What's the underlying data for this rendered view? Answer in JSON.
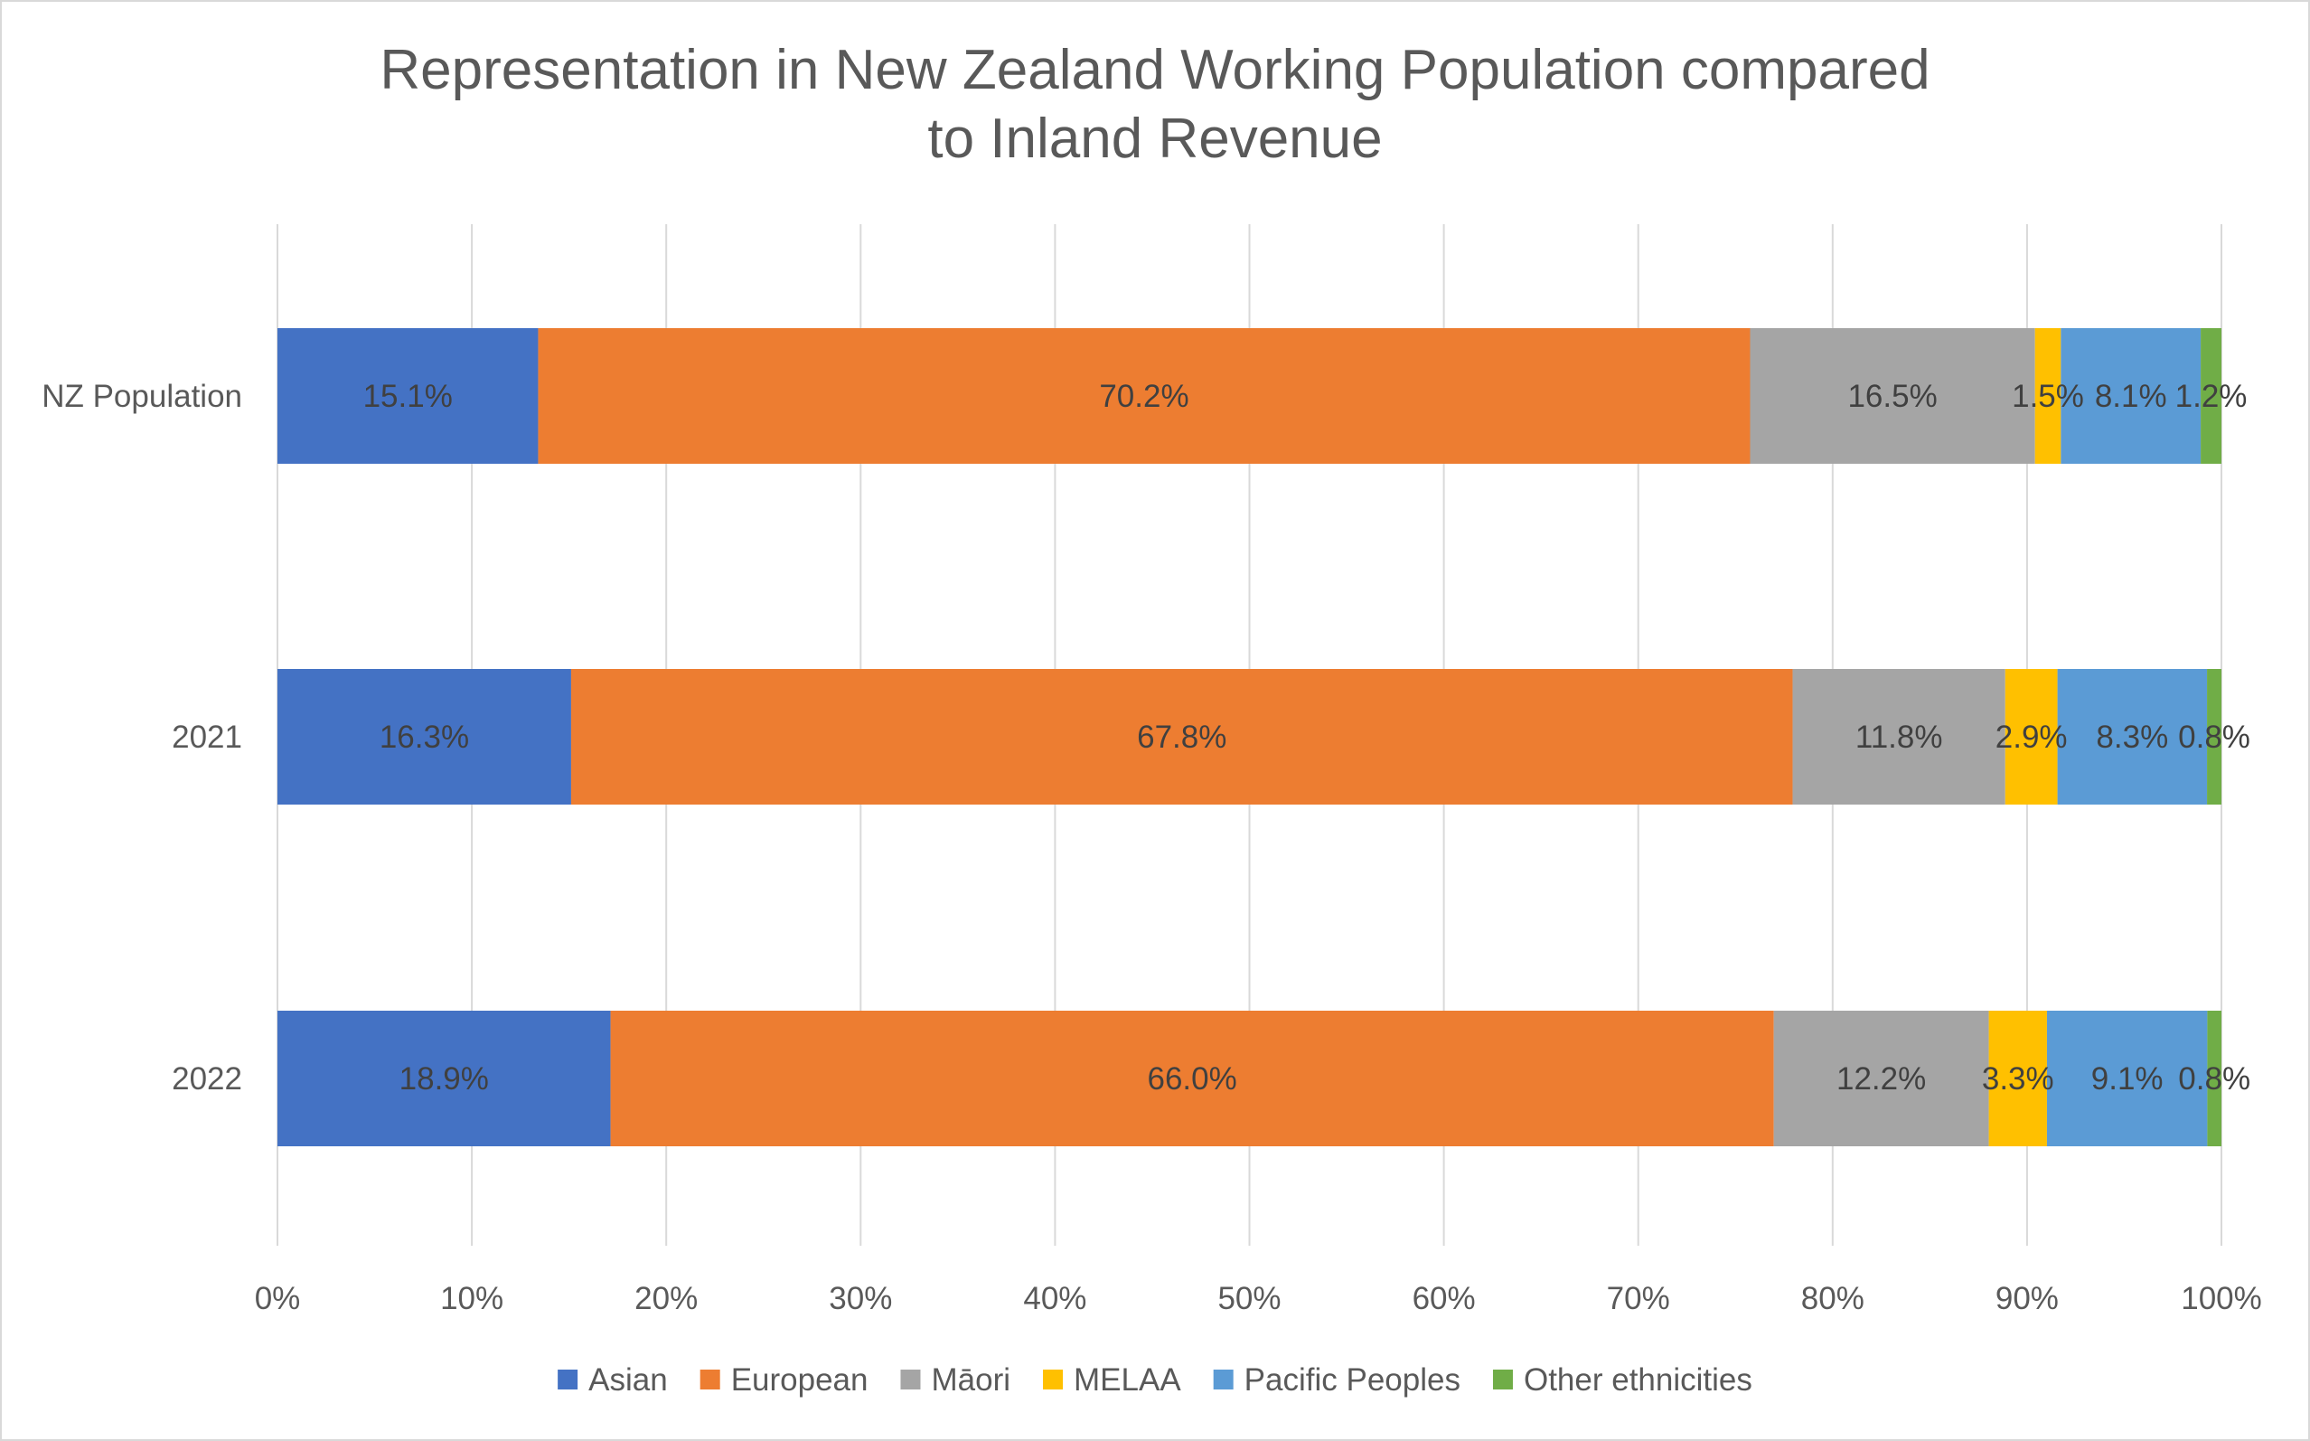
{
  "chart_data": {
    "type": "bar",
    "orientation": "horizontal",
    "stacked": "percent",
    "title": [
      "Representation in New Zealand Working Population compared",
      "to Inland Revenue"
    ],
    "categories": [
      "NZ Population",
      "2021",
      "2022"
    ],
    "series": [
      {
        "name": "Asian",
        "color": "#4472C4",
        "values": [
          15.1,
          16.3,
          18.9
        ],
        "labels": [
          "15.1%",
          "16.3%",
          "18.9%"
        ]
      },
      {
        "name": "European",
        "color": "#ED7D31",
        "values": [
          70.2,
          67.8,
          66.0
        ],
        "labels": [
          "70.2%",
          "67.8%",
          "66.0%"
        ]
      },
      {
        "name": "Māori",
        "color": "#A5A5A5",
        "values": [
          16.5,
          11.8,
          12.2
        ],
        "labels": [
          "16.5%",
          "11.8%",
          "12.2%"
        ]
      },
      {
        "name": "MELAA",
        "color": "#FFC000",
        "values": [
          1.5,
          2.9,
          3.3
        ],
        "labels": [
          "1.5%",
          "2.9%",
          "3.3%"
        ]
      },
      {
        "name": "Pacific Peoples",
        "color": "#5B9BD5",
        "values": [
          8.1,
          8.3,
          9.1
        ],
        "labels": [
          "8.1%",
          "8.3%",
          "9.1%"
        ]
      },
      {
        "name": "Other ethnicities",
        "color": "#70AD47",
        "values": [
          1.2,
          0.8,
          0.8
        ],
        "labels": [
          "1.2%",
          "0.8%",
          "0.8%"
        ]
      }
    ],
    "xticks": [
      "0%",
      "10%",
      "20%",
      "30%",
      "40%",
      "50%",
      "60%",
      "70%",
      "80%",
      "90%",
      "100%"
    ],
    "xlim": [
      0,
      100
    ],
    "grid": "vertical",
    "legend": "bottom"
  }
}
